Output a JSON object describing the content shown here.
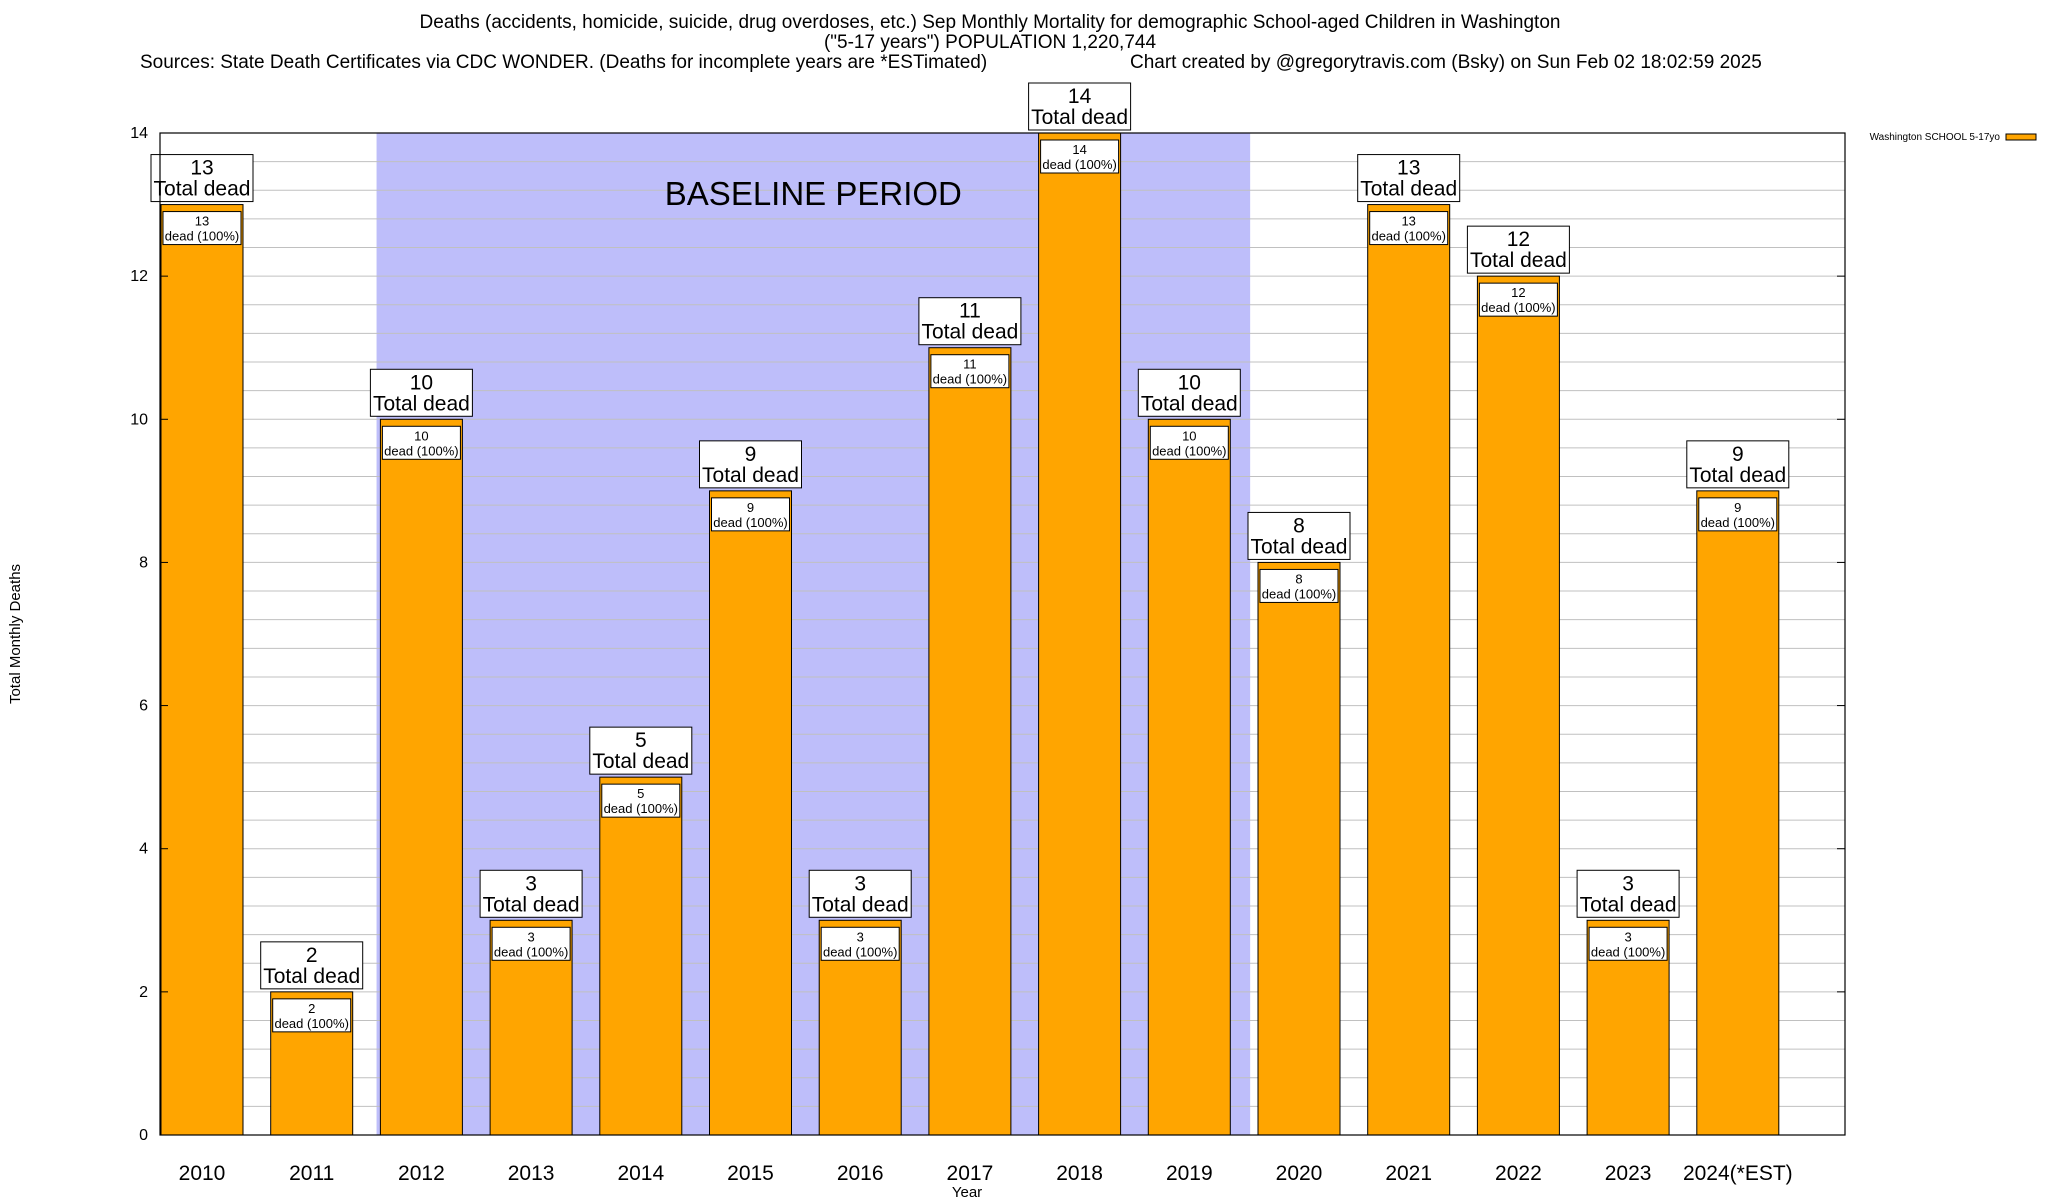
{
  "titles": {
    "line1": "Deaths (accidents, homicide, suicide, drug overdoses, etc.) Sep Monthly Mortality for demographic School-aged Children in Washington",
    "line2": "(\"5-17 years\") POPULATION 1,220,744",
    "line3_left": "Sources: State Death Certificates via CDC WONDER. (Deaths for incomplete years are *ESTimated)",
    "line3_right": "Chart created by @gregorytravis.com (Bsky) on Sun Feb 02 18:02:59 2025"
  },
  "chart_data": {
    "type": "bar",
    "xlabel": "Year",
    "ylabel": "Total Monthly Deaths",
    "ylim": [
      0,
      14
    ],
    "y_major_ticks": [
      0,
      2,
      4,
      6,
      8,
      10,
      12,
      14
    ],
    "grid": true,
    "legend": {
      "position": "top-right",
      "entries": [
        "Washington SCHOOL 5-17yo"
      ]
    },
    "categories": [
      "2010",
      "2011",
      "2012",
      "2013",
      "2014",
      "2015",
      "2016",
      "2017",
      "2018",
      "2019",
      "2020",
      "2021",
      "2022",
      "2023",
      "2024(*EST)"
    ],
    "series": [
      {
        "name": "Washington SCHOOL 5-17yo",
        "values": [
          13,
          2,
          10,
          3,
          5,
          9,
          3,
          11,
          14,
          10,
          8,
          13,
          12,
          3,
          9
        ]
      }
    ],
    "total_label_suffix": "Total dead",
    "bar_label_suffix": "dead (100%)",
    "baseline_period": {
      "label": "BASELINE PERIOD",
      "start": "2012",
      "end": "2019"
    },
    "colors": {
      "bar": "#ffa500",
      "baseline": "#bebefa",
      "grid": "#c0c0c0"
    }
  }
}
